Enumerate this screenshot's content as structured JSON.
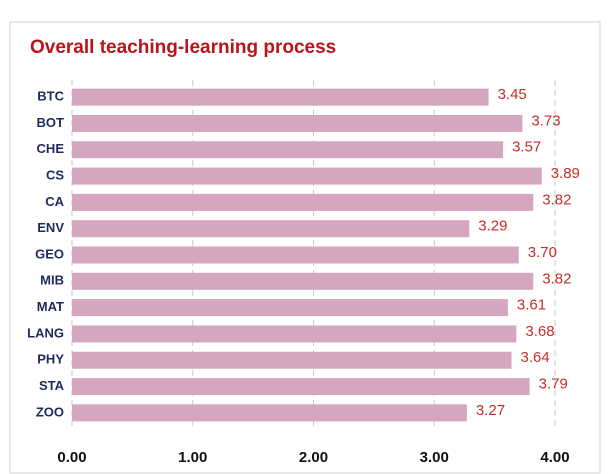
{
  "chart_data": {
    "type": "bar",
    "orientation": "horizontal",
    "title": "Overall teaching-learning process",
    "categories": [
      "BTC",
      "BOT",
      "CHE",
      "CS",
      "CA",
      "ENV",
      "GEO",
      "MIB",
      "MAT",
      "LANG",
      "PHY",
      "STA",
      "ZOO"
    ],
    "values": [
      3.45,
      3.73,
      3.57,
      3.89,
      3.82,
      3.29,
      3.7,
      3.82,
      3.61,
      3.68,
      3.64,
      3.79,
      3.27
    ],
    "value_labels": [
      "3.45",
      "3.73",
      "3.57",
      "3.89",
      "3.82",
      "3.29",
      "3.70",
      "3.82",
      "3.61",
      "3.68",
      "3.64",
      "3.79",
      "3.27"
    ],
    "color": "#d5a6bf",
    "xlim": [
      0,
      4
    ],
    "xticks": [
      {
        "value": 0,
        "label": "0.00"
      },
      {
        "value": 1,
        "label": "1.00"
      },
      {
        "value": 2,
        "label": "2.00"
      },
      {
        "value": 3,
        "label": "3.00"
      },
      {
        "value": 4,
        "label": "4.00"
      }
    ],
    "grid": true
  }
}
